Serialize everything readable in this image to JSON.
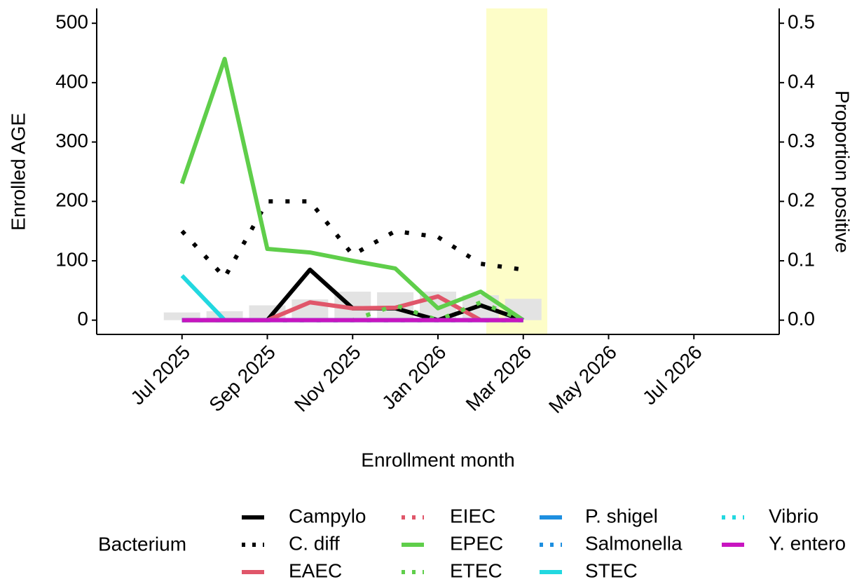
{
  "chart_data": {
    "type": "line",
    "x_label": "Enrollment month",
    "y_label": "Enrolled AGE",
    "y2_label": "Proportion positive",
    "legend_title": "Bacterium",
    "x": [
      "2025-07",
      "2025-08",
      "2025-09",
      "2025-10",
      "2025-11",
      "2025-12",
      "2026-01",
      "2026-02",
      "2026-03"
    ],
    "xlim": [
      "2025-05",
      "2026-09"
    ],
    "xticks": [
      {
        "value": "2025-07",
        "label": "Jul 2025"
      },
      {
        "value": "2025-09",
        "label": "Sep 2025"
      },
      {
        "value": "2025-11",
        "label": "Nov 2025"
      },
      {
        "value": "2026-01",
        "label": "Jan 2026"
      },
      {
        "value": "2026-03",
        "label": "Mar 2026"
      },
      {
        "value": "2026-05",
        "label": "May 2026"
      },
      {
        "value": "2026-07",
        "label": "Jul 2026"
      }
    ],
    "ylim": [
      -24,
      525
    ],
    "yticks": [
      0,
      100,
      200,
      300,
      400,
      500
    ],
    "y2lim": [
      -0.024,
      0.525
    ],
    "y2ticks": [
      {
        "value": 0,
        "label": "0.0"
      },
      0.1,
      0.2,
      0.3,
      0.4,
      0.5
    ],
    "bar_values": [
      13,
      15,
      25,
      35,
      48,
      47,
      48,
      42,
      36
    ],
    "bar_color": "#e3e3e3",
    "series": [
      {
        "name": "Campylo",
        "color": "#000000",
        "dash": "solid",
        "axis": "y2",
        "values": [
          0,
          0,
          0,
          0.085,
          0.02,
          0.02,
          0,
          0.025,
          0
        ]
      },
      {
        "name": "C. diff",
        "color": "#000000",
        "dash": "dotted",
        "axis": "y2",
        "values": [
          0.15,
          0.072,
          0.2,
          0.2,
          0.11,
          0.15,
          0.14,
          0.095,
          0.085
        ]
      },
      {
        "name": "EAEC",
        "color": "#e0566a",
        "dash": "solid",
        "axis": "y2",
        "values": [
          0,
          0,
          0,
          0.03,
          0.02,
          0.021,
          0.04,
          0,
          0
        ]
      },
      {
        "name": "EIEC",
        "color": "#e0566a",
        "dash": "dotted",
        "axis": "y2",
        "values": [
          0,
          0,
          0,
          0,
          0,
          0,
          0,
          0,
          0
        ]
      },
      {
        "name": "EPEC",
        "color": "#5fce4a",
        "dash": "solid",
        "axis": "y2",
        "values": [
          0.23,
          0.44,
          0.12,
          0.114,
          0.1,
          0.087,
          0.02,
          0.048,
          0
        ]
      },
      {
        "name": "ETEC",
        "color": "#5fce4a",
        "dash": "dotted",
        "axis": "y2",
        "values": [
          0,
          0,
          0,
          0,
          0,
          0.025,
          0,
          0.03,
          0
        ]
      },
      {
        "name": "P. shigel",
        "color": "#1e8fe0",
        "dash": "solid",
        "axis": "y2",
        "values": [
          0,
          0,
          0,
          0,
          0,
          0,
          0,
          0,
          0
        ]
      },
      {
        "name": "Salmonella",
        "color": "#1e8fe0",
        "dash": "dotted",
        "axis": "y2",
        "values": [
          0,
          0,
          0,
          0,
          0,
          0,
          0,
          0,
          0
        ]
      },
      {
        "name": "STEC",
        "color": "#22d8e0",
        "dash": "solid",
        "axis": "y2",
        "values": [
          0.075,
          0,
          0,
          0,
          0,
          0,
          0,
          0,
          0
        ]
      },
      {
        "name": "Vibrio",
        "color": "#22d8e0",
        "dash": "dotted",
        "axis": "y2",
        "values": [
          0,
          0,
          0,
          0,
          0,
          0,
          0,
          0,
          0
        ]
      },
      {
        "name": "Y. entero",
        "color": "#c815c0",
        "dash": "solid",
        "axis": "y2",
        "values": [
          0,
          0,
          0,
          0,
          0,
          0,
          0,
          0,
          0
        ]
      }
    ]
  }
}
